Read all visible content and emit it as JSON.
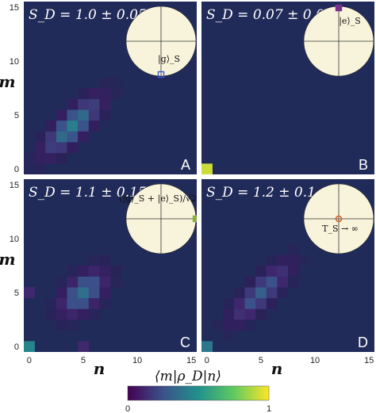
{
  "chart_data": {
    "type": "heatmap",
    "colorbar": {
      "label": "⟨m|ρ_D|n⟩",
      "min_label": "0",
      "max_label": "1",
      "colormap": [
        "#440154",
        "#3b528b",
        "#21918c",
        "#5ec962",
        "#fde725"
      ]
    },
    "colors": {
      "background": "#212b5a",
      "panel_border": "#ffffff",
      "bloch_fill": "#f8f4dc"
    },
    "xlabel": "n",
    "ylabel": "m",
    "x_ticks": [
      "0",
      "5",
      "10",
      "15"
    ],
    "y_ticks": [
      "0",
      "5",
      "10",
      "15"
    ],
    "xlim": [
      0,
      15
    ],
    "ylim": [
      0,
      15
    ],
    "panels": [
      {
        "id": "A",
        "sd": "S_D = 1.0 ± 0.05",
        "state_label": "|g⟩_S",
        "marker_color": "#3a56c8",
        "marker": "square-open",
        "blobs": [
          {
            "center": [
              4,
              4
            ],
            "amp": 0.42,
            "sigma_d": 2.2,
            "sigma_a": 0.75
          }
        ]
      },
      {
        "id": "B",
        "sd": "S_D = 0.07 ± 0.07",
        "state_label": "|e⟩_S",
        "marker_color": "#7b2f8f",
        "marker": "square-filled",
        "cells": [
          {
            "m": 0,
            "n": 0,
            "value": 0.92
          }
        ]
      },
      {
        "id": "C",
        "sd": "S_D = 1.1 ± 0.15",
        "state_label": "(|g⟩_S + |e⟩_S)/√2",
        "marker_color": "#8aae3a",
        "marker": "square-filled",
        "blobs": [
          {
            "center": [
              5,
              5
            ],
            "amp": 0.36,
            "sigma_d": 1.6,
            "sigma_a": 0.9
          }
        ],
        "cells": [
          {
            "m": 0,
            "n": 0,
            "value": 0.45
          },
          {
            "m": 0,
            "n": 5,
            "value": 0.12
          },
          {
            "m": 5,
            "n": 0,
            "value": 0.12
          }
        ]
      },
      {
        "id": "D",
        "sd": "S_D = 1.2 ± 0.1",
        "state_label": "T_S → ∞",
        "marker_color": "#d4622a",
        "marker": "circle-open",
        "blobs": [
          {
            "center": [
              5,
              5
            ],
            "amp": 0.3,
            "sigma_d": 2.3,
            "sigma_a": 0.7
          }
        ],
        "cells": [
          {
            "m": 0,
            "n": 0,
            "value": 0.4
          }
        ]
      }
    ]
  }
}
